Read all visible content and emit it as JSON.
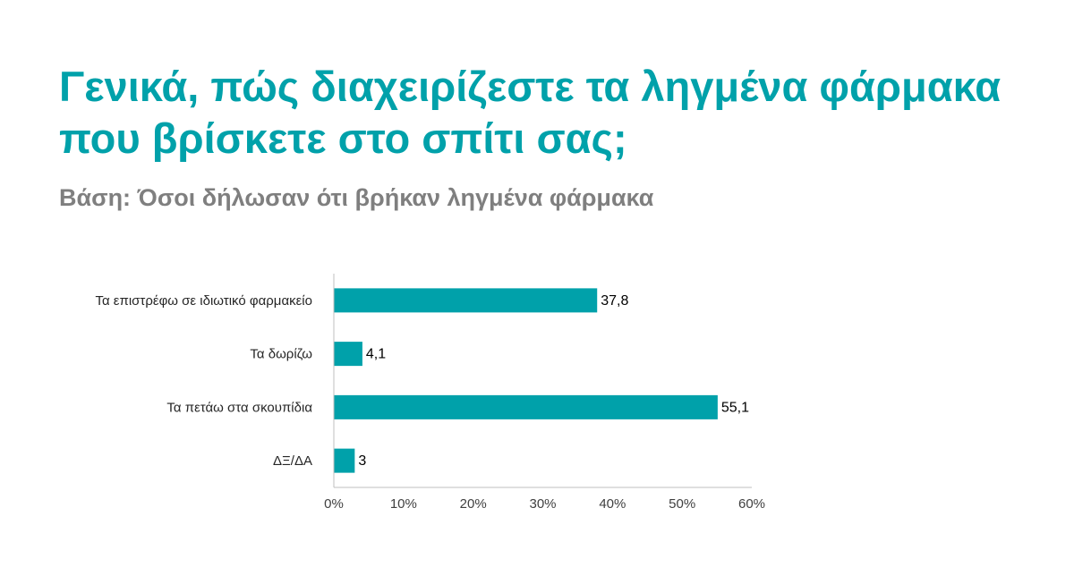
{
  "header": {
    "title": "Γενικά, πώς διαχειρίζεστε τα ληγμένα φάρμακα που βρίσκετε στο σπίτι σας;",
    "subtitle": "Βάση: Όσοι δήλωσαν ότι βρήκαν ληγμένα φάρμακα"
  },
  "colors": {
    "accent": "#00A1AA",
    "subtitle": "#7F7F7F",
    "axis": "#BFBFBF"
  },
  "chart_data": {
    "type": "bar",
    "orientation": "horizontal",
    "categories": [
      "Τα επιστρέφω σε  ιδιωτικό φαρμακείο",
      "Τα δωρίζω",
      "Τα πετάω στα σκουπίδια",
      "ΔΞ/ΔΑ"
    ],
    "values": [
      37.8,
      4.1,
      55.1,
      3
    ],
    "data_labels": [
      "37,8",
      "4,1",
      "55,1",
      "3"
    ],
    "xlim": [
      0,
      60
    ],
    "ticks": [
      0,
      10,
      20,
      30,
      40,
      50,
      60
    ],
    "tick_labels": [
      "0%",
      "10%",
      "20%",
      "30%",
      "40%",
      "50%",
      "60%"
    ],
    "grid": false,
    "legend": "none",
    "bar_color": "#00A1AA"
  }
}
